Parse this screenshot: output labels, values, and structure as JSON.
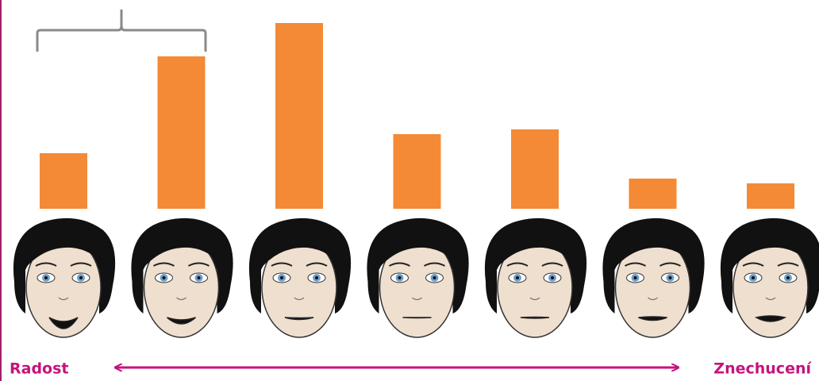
{
  "chart_data": {
    "type": "bar",
    "categories": [
      null,
      null,
      null,
      null,
      null,
      null,
      null
    ],
    "values": [
      70,
      192,
      234,
      94,
      100,
      38,
      32
    ],
    "color": "#f48a35",
    "x_label_left": "Radost",
    "x_label_right": "Znechucení"
  }
}
